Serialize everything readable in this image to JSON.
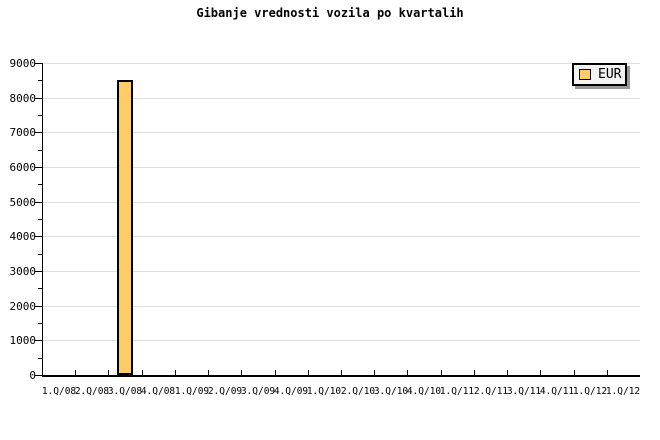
{
  "chart_data": {
    "type": "bar",
    "title": "Gibanje vrednosti vozila po kvartalih",
    "categories": [
      "1.Q/08",
      "2.Q/08",
      "3.Q/08",
      "4.Q/08",
      "1.Q/09",
      "2.Q/09",
      "3.Q/09",
      "4.Q/09",
      "1.Q/10",
      "2.Q/10",
      "3.Q/10",
      "4.Q/10",
      "1.Q/11",
      "2.Q/11",
      "3.Q/11",
      "4.Q/11",
      "1.Q/12",
      "1.Q/12"
    ],
    "series": [
      {
        "name": "EUR",
        "values": [
          null,
          null,
          8500,
          null,
          null,
          null,
          null,
          null,
          null,
          null,
          null,
          null,
          null,
          null,
          null,
          null,
          null,
          null
        ]
      }
    ],
    "xlabel": "",
    "ylabel": "",
    "ylim": [
      0,
      9000
    ],
    "y_tick_step": 1000,
    "y_minor_tick_step": 500,
    "y_tick_labels": [
      "0",
      "1000",
      "2000",
      "3000",
      "4000",
      "5000",
      "6000",
      "7000",
      "8000",
      "9000"
    ],
    "grid": "horizontal-major",
    "legend_position": "top-right",
    "colors": {
      "bar_fill": "#FFCC66",
      "bar_border": "#000000",
      "grid": "#DDDDDD",
      "axis": "#000000",
      "text": "#000000",
      "background": "#FFFFFF",
      "legend_bg": "#F2F2F2",
      "legend_border": "#000000",
      "legend_shadow": "#999999"
    }
  }
}
